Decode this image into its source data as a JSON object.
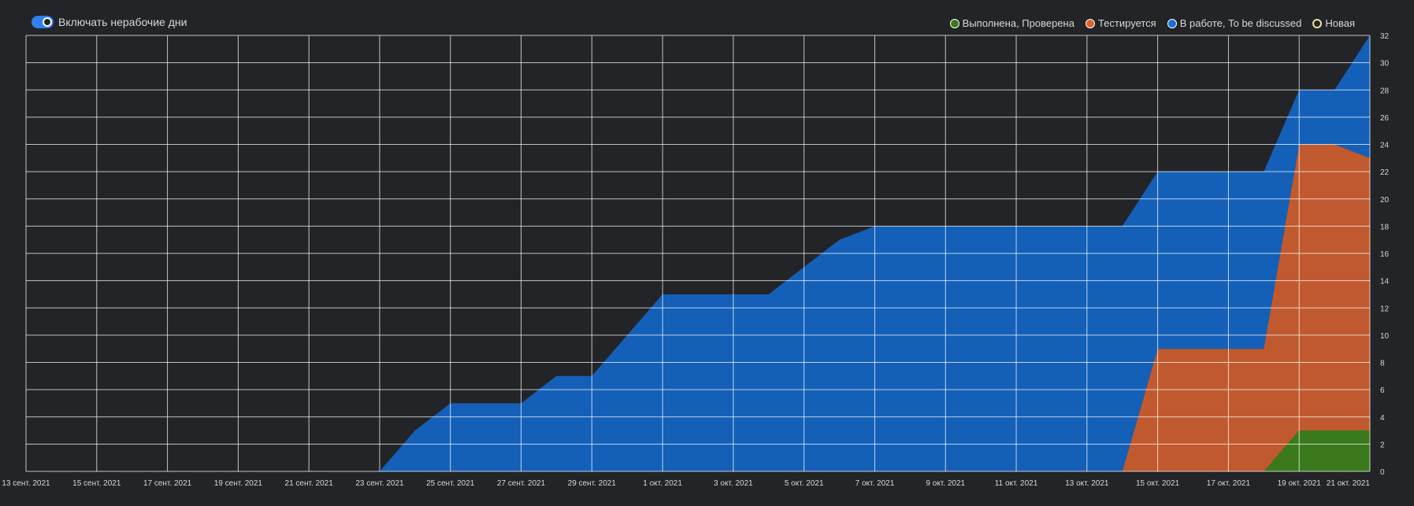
{
  "toggle": {
    "label": "Включать нерабочие дни",
    "on": true
  },
  "legend": [
    {
      "label": "Выполнена, Проверена",
      "color": "#3a7a1c",
      "filled": true,
      "icon": "green-dot-icon"
    },
    {
      "label": "Тестируется",
      "color": "#e0622b",
      "filled": true,
      "icon": "orange-dot-icon"
    },
    {
      "label": "В работе, To be discussed",
      "color": "#1a6fd8",
      "filled": true,
      "icon": "blue-dot-icon"
    },
    {
      "label": "Новая",
      "color": "#f0e09a",
      "filled": false,
      "icon": "yellow-ring-icon"
    }
  ],
  "chart_data": {
    "type": "area",
    "stacked": true,
    "x": [
      "13 сент. 2021",
      "14 сент. 2021",
      "15 сент. 2021",
      "16 сент. 2021",
      "17 сент. 2021",
      "18 сент. 2021",
      "19 сент. 2021",
      "20 сент. 2021",
      "21 сент. 2021",
      "22 сент. 2021",
      "23 сент. 2021",
      "24 сент. 2021",
      "25 сент. 2021",
      "26 сент. 2021",
      "27 сент. 2021",
      "28 сент. 2021",
      "29 сент. 2021",
      "30 сент. 2021",
      "1 окт. 2021",
      "2 окт. 2021",
      "3 окт. 2021",
      "4 окт. 2021",
      "5 окт. 2021",
      "6 окт. 2021",
      "7 окт. 2021",
      "8 окт. 2021",
      "9 окт. 2021",
      "10 окт. 2021",
      "11 окт. 2021",
      "12 окт. 2021",
      "13 окт. 2021",
      "14 окт. 2021",
      "15 окт. 2021",
      "16 окт. 2021",
      "17 окт. 2021",
      "18 окт. 2021",
      "19 окт. 2021",
      "20 окт. 2021",
      "21 окт. 2021"
    ],
    "x_tick_labels": [
      "13 сент. 2021",
      "15 сент. 2021",
      "17 сент. 2021",
      "19 сент. 2021",
      "21 сент. 2021",
      "23 сент. 2021",
      "25 сент. 2021",
      "27 сент. 2021",
      "29 сент. 2021",
      "1 окт. 2021",
      "3 окт. 2021",
      "5 окт. 2021",
      "7 окт. 2021",
      "9 окт. 2021",
      "11 окт. 2021",
      "13 окт. 2021",
      "15 окт. 2021",
      "17 окт. 2021",
      "19 окт. 2021",
      "21 окт. 2021"
    ],
    "series": [
      {
        "name": "Выполнена, Проверена",
        "color": "#3a7a1c",
        "values": [
          0,
          0,
          0,
          0,
          0,
          0,
          0,
          0,
          0,
          0,
          0,
          0,
          0,
          0,
          0,
          0,
          0,
          0,
          0,
          0,
          0,
          0,
          0,
          0,
          0,
          0,
          0,
          0,
          0,
          0,
          0,
          0,
          0,
          0,
          0,
          0,
          3,
          3,
          3
        ]
      },
      {
        "name": "Тестируется",
        "color": "#c05a2e",
        "values": [
          0,
          0,
          0,
          0,
          0,
          0,
          0,
          0,
          0,
          0,
          0,
          0,
          0,
          0,
          0,
          0,
          0,
          0,
          0,
          0,
          0,
          0,
          0,
          0,
          0,
          0,
          0,
          0,
          0,
          0,
          0,
          0,
          9,
          9,
          9,
          9,
          21,
          21,
          20
        ]
      },
      {
        "name": "В работе, To be discussed",
        "color": "#1460b8",
        "values": [
          0,
          0,
          0,
          0,
          0,
          0,
          0,
          0,
          0,
          0,
          0,
          3,
          5,
          5,
          5,
          7,
          7,
          10,
          13,
          13,
          13,
          13,
          15,
          17,
          18,
          18,
          18,
          18,
          18,
          18,
          18,
          18,
          13,
          13,
          13,
          13,
          4,
          4,
          9
        ]
      },
      {
        "name": "Новая",
        "color": "#f0e09a",
        "values": [
          0,
          0,
          0,
          0,
          0,
          0,
          0,
          0,
          0,
          0,
          0,
          0,
          0,
          0,
          0,
          0,
          0,
          0,
          0,
          0,
          0,
          0,
          0,
          0,
          0,
          0,
          0,
          0,
          0,
          0,
          0,
          0,
          0,
          0,
          0,
          0,
          0,
          0,
          0
        ]
      }
    ],
    "ylim": [
      0,
      32
    ],
    "y_ticks": [
      0,
      2,
      4,
      6,
      8,
      10,
      12,
      14,
      16,
      18,
      20,
      22,
      24,
      26,
      28,
      30,
      32
    ],
    "grid": true,
    "legend_position": "top-right"
  }
}
